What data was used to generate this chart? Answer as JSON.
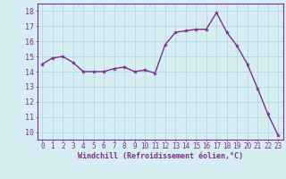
{
  "x": [
    0,
    1,
    2,
    3,
    4,
    5,
    6,
    7,
    8,
    9,
    10,
    11,
    12,
    13,
    14,
    15,
    16,
    17,
    18,
    19,
    20,
    21,
    22,
    23
  ],
  "y": [
    14.5,
    14.9,
    15.0,
    14.6,
    14.0,
    14.0,
    14.0,
    14.2,
    14.3,
    14.0,
    14.1,
    13.9,
    15.8,
    16.6,
    16.7,
    16.8,
    16.8,
    17.9,
    16.6,
    15.7,
    14.5,
    12.9,
    11.2,
    9.8
  ],
  "line_color": "#7b2d8b",
  "marker": "*",
  "marker_color": "#7b2d8b",
  "bg_color": "#d6eef2",
  "grid_color": "#b0d8e0",
  "xlabel": "Windchill (Refroidissement éolien,°C)",
  "xlabel_color": "#7b2d8b",
  "tick_color": "#7b2d8b",
  "spine_color": "#7b2d8b",
  "ylim": [
    9.5,
    18.5
  ],
  "xlim": [
    -0.5,
    23.5
  ],
  "yticks": [
    10,
    11,
    12,
    13,
    14,
    15,
    16,
    17,
    18
  ],
  "xticks": [
    0,
    1,
    2,
    3,
    4,
    5,
    6,
    7,
    8,
    9,
    10,
    11,
    12,
    13,
    14,
    15,
    16,
    17,
    18,
    19,
    20,
    21,
    22,
    23
  ],
  "xtick_labels": [
    "0",
    "1",
    "2",
    "3",
    "4",
    "5",
    "6",
    "7",
    "8",
    "9",
    "10",
    "11",
    "12",
    "13",
    "14",
    "15",
    "16",
    "17",
    "18",
    "19",
    "20",
    "21",
    "22",
    "23"
  ],
  "linewidth": 1.0,
  "markersize": 3.0,
  "tick_fontsize": 5.5,
  "xlabel_fontsize": 6.0
}
